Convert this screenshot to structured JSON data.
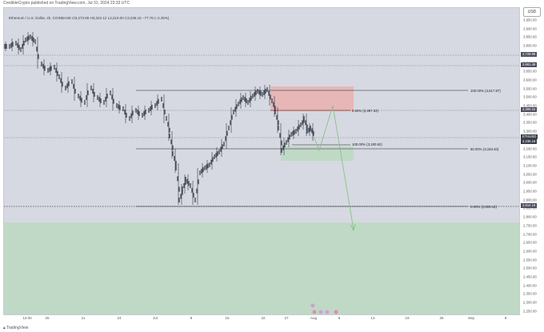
{
  "header": {
    "publisher_text": "CredibleCrypto published on TradingView.com, Jul 31, 2024 23:33 UTC"
  },
  "symbol_info": "Ethereum / U.S. Dollar, 4h, COINBASE  O3,273.80  H3,322.12  L3,210.00  C3,236.16  −77.76 (−2.35%)",
  "currency_button": "USD",
  "price_axis": {
    "ticks": [
      "3,950.00",
      "3,900.00",
      "3,850.00",
      "3,800.00",
      "3,750.00",
      "3,700.00",
      "3,650.00",
      "3,600.00",
      "3,550.00",
      "3,500.00",
      "3,450.00",
      "3,400.00",
      "3,350.00",
      "3,300.00",
      "3,250.00",
      "3,200.00",
      "3,150.00",
      "3,100.00",
      "3,050.00",
      "3,000.00",
      "2,950.00",
      "2,900.00",
      "2,850.00",
      "2,800.00",
      "2,750.00",
      "2,700.00",
      "2,650.00",
      "2,600.00",
      "2,550.00",
      "2,500.00",
      "2,450.00",
      "2,400.00",
      "2,350.00",
      "2,300.00",
      "2,250.00"
    ],
    "badges": [
      {
        "text": "3,728.98",
        "color": "#4a4f5c"
      },
      {
        "text": "3,661.48",
        "color": "#4a4f5c"
      },
      {
        "text": "3,399.34",
        "color": "#4a4f5c"
      },
      {
        "text": "ETHUSD",
        "color": "#3a3f4a"
      },
      {
        "text": "3,236.16",
        "color": "#3a3f4a"
      },
      {
        "text": "2,814.19",
        "color": "#4a4f5c"
      }
    ]
  },
  "time_axis": {
    "ticks": [
      "12:00",
      "25",
      "11",
      "24",
      "Jul",
      "8",
      "15",
      "22",
      "27",
      "Aug",
      "6",
      "13",
      "19",
      "26",
      "Sep",
      "9"
    ]
  },
  "annotations": {
    "fib_100_top": "100.00% (3,517.87)",
    "fib_0_top": "0.00% (3,397.33)",
    "fib_100_mid": "100.00% (3,180.92)",
    "fib_50": "50.00% (3,163.40)",
    "fib_0_bottom": "0.00% (2,809.16)"
  },
  "footer": {
    "brand": "TradingView"
  },
  "colors": {
    "background": "#d6d9e1",
    "red_zone": "#e9b1b3",
    "green_zone": "#bfd9c4",
    "candle": "#2e3441",
    "arrow": "#7fc07f"
  }
}
